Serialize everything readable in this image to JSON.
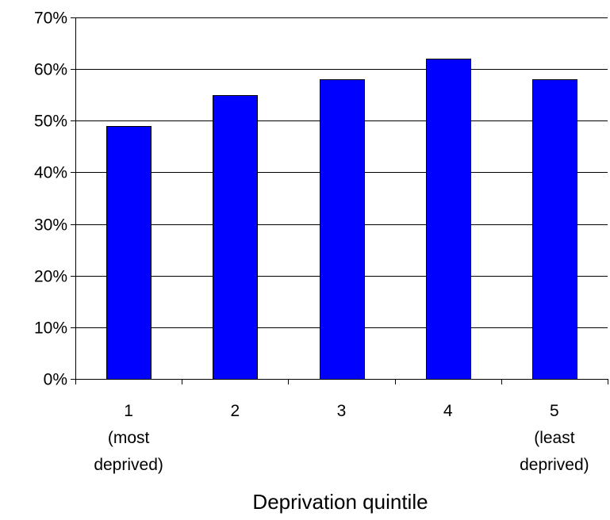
{
  "chart_data": {
    "type": "bar",
    "categories": [
      [
        "1",
        "(most",
        "deprived)"
      ],
      [
        "2"
      ],
      [
        "3"
      ],
      [
        "4"
      ],
      [
        "5",
        "(least",
        "deprived)"
      ]
    ],
    "values": [
      49,
      55,
      58,
      62,
      58
    ],
    "title": "",
    "xlabel": "Deprivation quintile",
    "ylabel": "",
    "ylim": [
      0,
      70
    ],
    "yticks": [
      0,
      10,
      20,
      30,
      40,
      50,
      60,
      70
    ],
    "ytick_suffix": "%",
    "grid": true,
    "bar_color": "#0000FF",
    "bar_edge_color": "#000000"
  }
}
